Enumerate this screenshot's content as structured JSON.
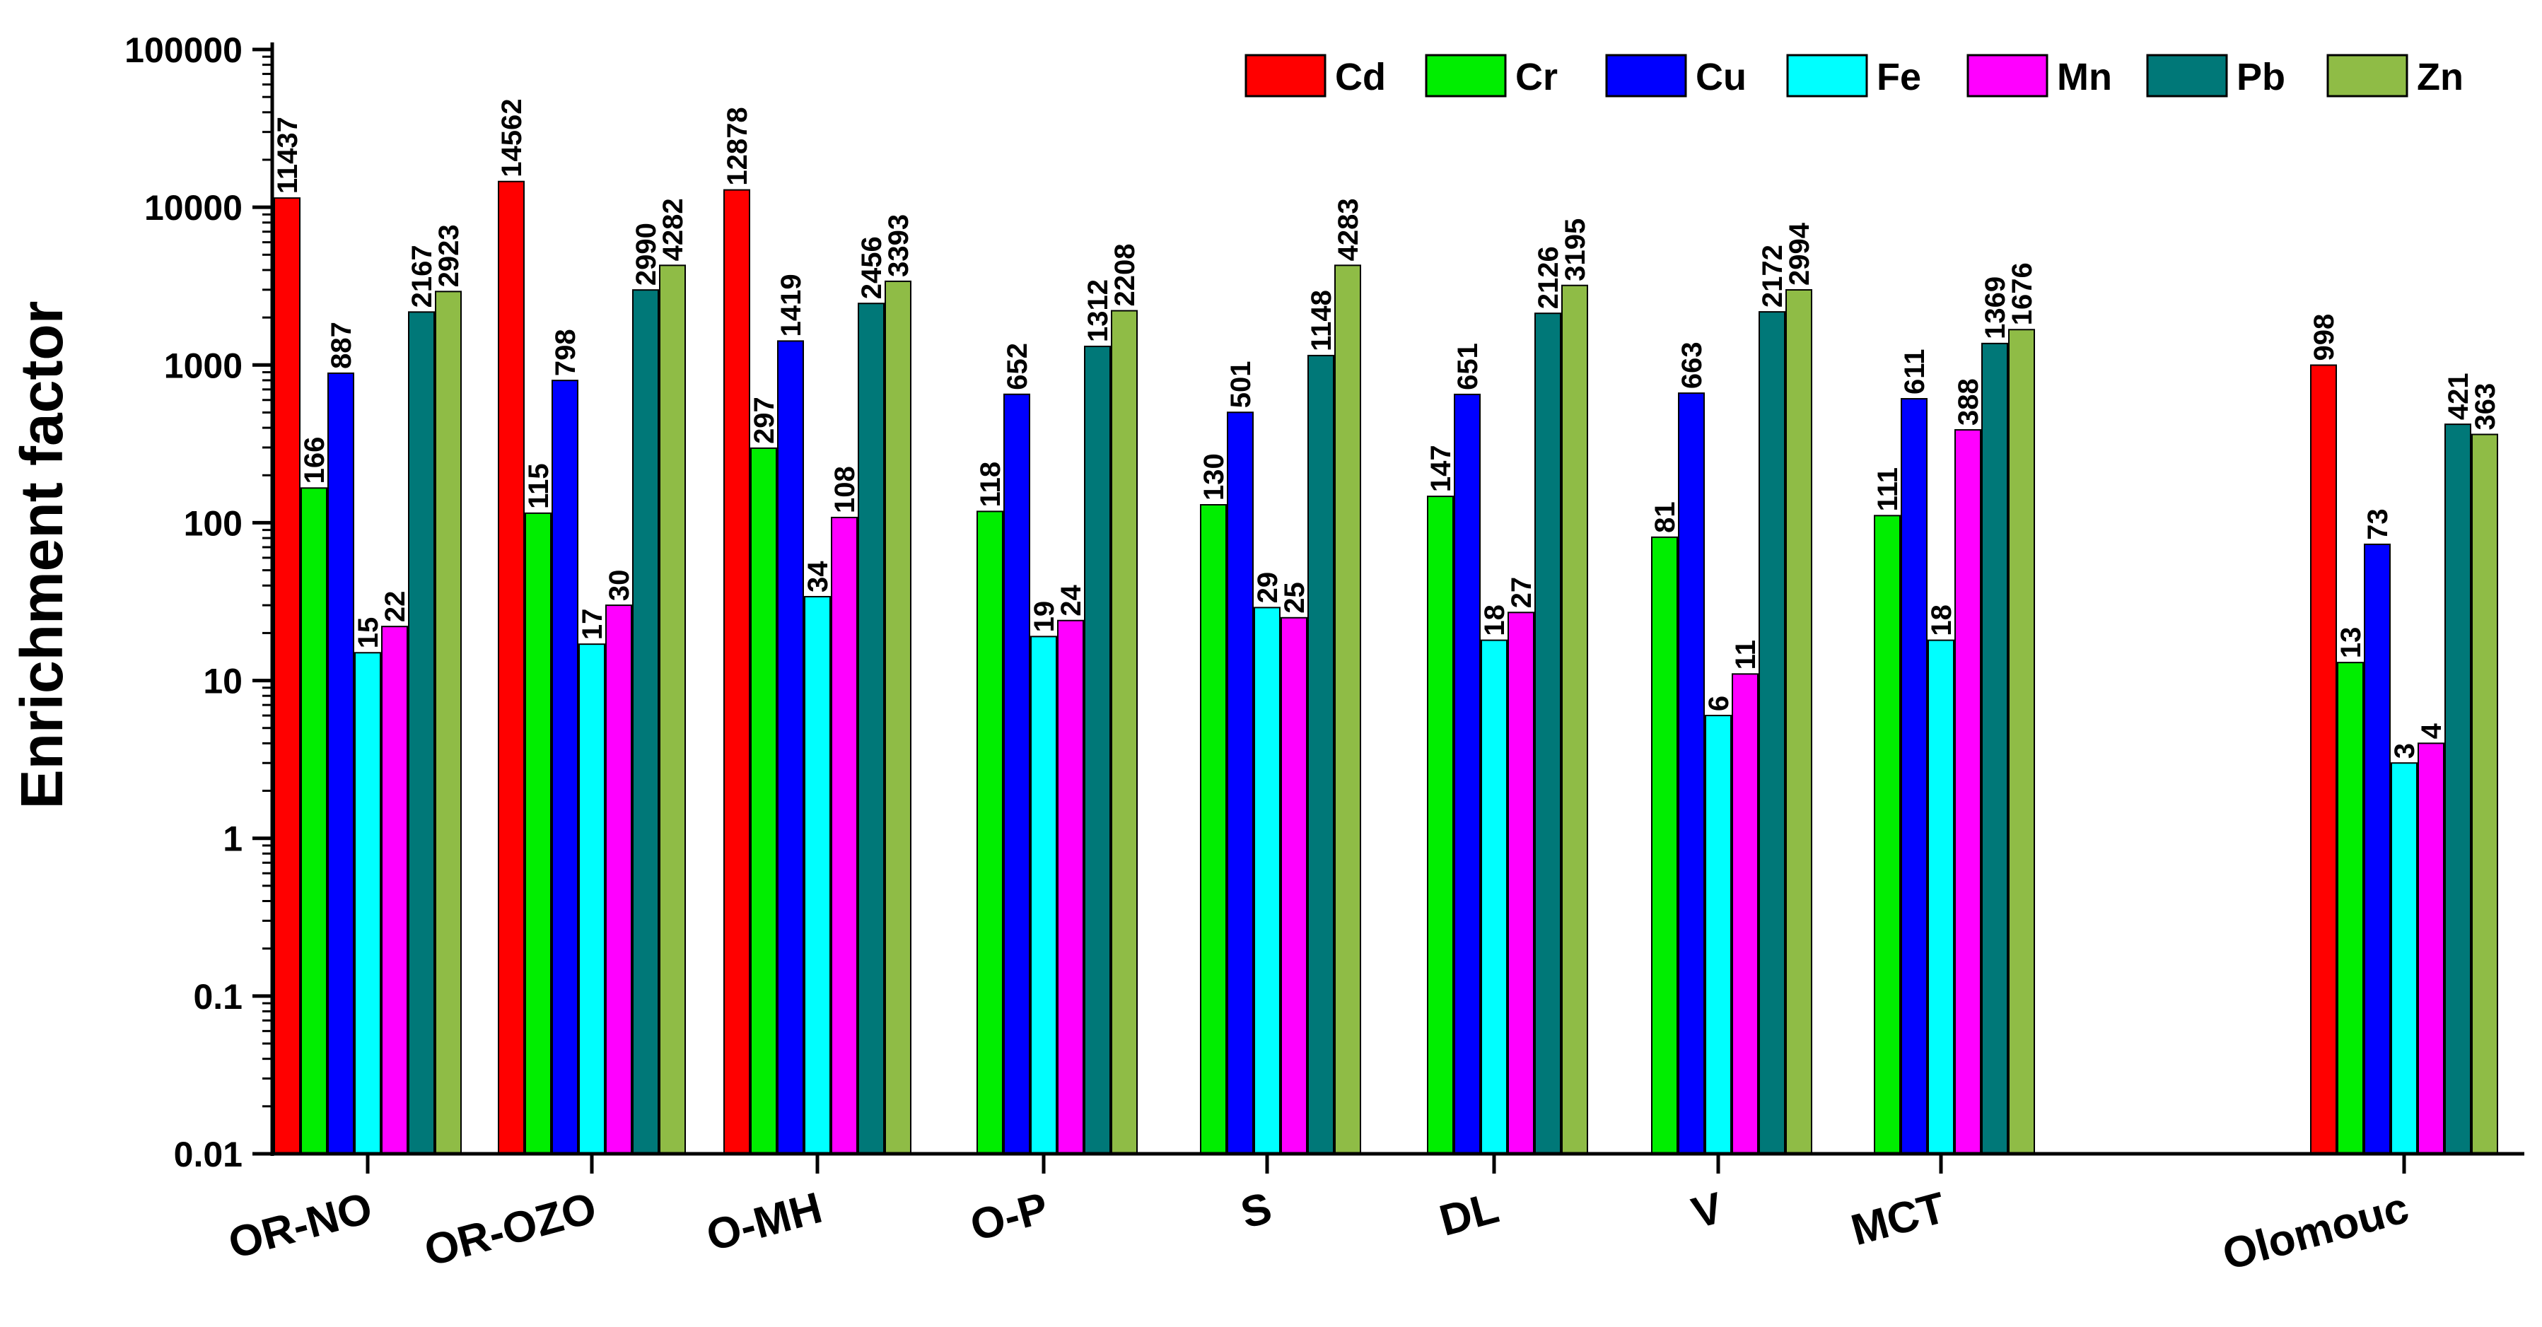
{
  "chart_data": {
    "type": "bar",
    "scale": "log",
    "ylabel": "Enrichment factor",
    "xlabel": "",
    "ylim": [
      0.01,
      100000
    ],
    "yticks": [
      0.01,
      0.1,
      1,
      10,
      100,
      1000,
      10000,
      100000
    ],
    "ytick_labels": [
      "0.01",
      "0.1",
      "1",
      "10",
      "100",
      "1000",
      "10000",
      "100000"
    ],
    "legend_position": "top-right",
    "categories": [
      "OR-NO",
      "OR-OZO",
      "O-MH",
      "O-P",
      "S",
      "DL",
      "V",
      "MCT",
      "Olomouc"
    ],
    "series": [
      {
        "name": "Cd",
        "color": "#ff0000",
        "values": [
          11437,
          14562,
          12878,
          null,
          null,
          null,
          null,
          null,
          998
        ]
      },
      {
        "name": "Cr",
        "color": "#00ee00",
        "values": [
          166,
          115,
          297,
          118,
          130,
          147,
          81,
          111,
          13
        ]
      },
      {
        "name": "Cu",
        "color": "#0000ff",
        "values": [
          887,
          798,
          1419,
          652,
          501,
          651,
          663,
          611,
          73
        ]
      },
      {
        "name": "Fe",
        "color": "#00ffff",
        "values": [
          15,
          17,
          34,
          19,
          29,
          18,
          6,
          18,
          3
        ]
      },
      {
        "name": "Mn",
        "color": "#ff00ff",
        "values": [
          22,
          30,
          108,
          24,
          25,
          27,
          11,
          388,
          4
        ]
      },
      {
        "name": "Pb",
        "color": "#007878",
        "values": [
          2167,
          2990,
          2456,
          1312,
          1148,
          2126,
          2172,
          1369,
          421
        ]
      },
      {
        "name": "Zn",
        "color": "#8fbc46",
        "values": [
          2923,
          4282,
          3393,
          2208,
          4283,
          3195,
          2994,
          1676,
          363
        ]
      }
    ]
  }
}
